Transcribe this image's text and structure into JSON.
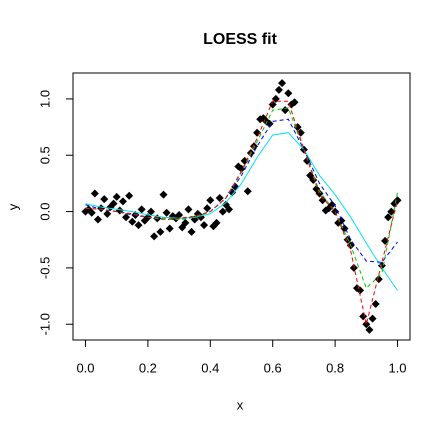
{
  "chart_data": {
    "type": "scatter",
    "title": "LOESS fit",
    "x_label": "x",
    "y_label": "y",
    "point_color": "#000000",
    "x": [
      0.0,
      0.01,
      0.02,
      0.03,
      0.04,
      0.05,
      0.06,
      0.07,
      0.08,
      0.09,
      0.1,
      0.11,
      0.12,
      0.13,
      0.14,
      0.15,
      0.16,
      0.17,
      0.18,
      0.19,
      0.2,
      0.21,
      0.22,
      0.23,
      0.24,
      0.25,
      0.26,
      0.27,
      0.28,
      0.29,
      0.3,
      0.31,
      0.32,
      0.33,
      0.34,
      0.35,
      0.36,
      0.37,
      0.38,
      0.39,
      0.4,
      0.41,
      0.42,
      0.43,
      0.44,
      0.45,
      0.46,
      0.47,
      0.48,
      0.49,
      0.5,
      0.51,
      0.52,
      0.53,
      0.54,
      0.55,
      0.56,
      0.57,
      0.58,
      0.59,
      0.6,
      0.61,
      0.62,
      0.63,
      0.64,
      0.65,
      0.66,
      0.67,
      0.68,
      0.69,
      0.7,
      0.71,
      0.72,
      0.73,
      0.74,
      0.75,
      0.76,
      0.77,
      0.78,
      0.79,
      0.8,
      0.81,
      0.82,
      0.83,
      0.84,
      0.85,
      0.86,
      0.87,
      0.88,
      0.89,
      0.9,
      0.91,
      0.92,
      0.93,
      0.94,
      0.95,
      0.96,
      0.97,
      0.98,
      0.99,
      1.0
    ],
    "y": [
      0.0,
      0.02,
      -0.01,
      0.16,
      -0.07,
      0.03,
      0.11,
      -0.02,
      0.04,
      0.07,
      0.13,
      0.01,
      0.09,
      -0.05,
      0.14,
      -0.09,
      -0.03,
      -0.12,
      0.02,
      -0.08,
      -0.05,
      0.0,
      -0.22,
      -0.06,
      -0.18,
      0.15,
      -0.01,
      -0.15,
      -0.04,
      -0.06,
      -0.03,
      -0.14,
      -0.1,
      0.02,
      -0.18,
      -0.07,
      -0.02,
      -0.05,
      -0.12,
      0.03,
      0.1,
      -0.13,
      -0.1,
      0.12,
      0.0,
      0.06,
      0.02,
      0.17,
      0.22,
      0.4,
      0.38,
      0.45,
      0.18,
      0.52,
      0.58,
      0.7,
      0.82,
      0.83,
      0.8,
      0.78,
      0.95,
      1.0,
      1.08,
      1.14,
      0.9,
      1.05,
      0.95,
      0.97,
      0.75,
      0.7,
      0.55,
      0.45,
      0.32,
      0.28,
      0.2,
      0.16,
      0.1,
      0.01,
      0.03,
      0.06,
      0.0,
      -0.1,
      -0.08,
      -0.15,
      -0.25,
      -0.3,
      -0.5,
      -0.68,
      -0.7,
      -0.93,
      -1.0,
      -1.05,
      -0.95,
      -0.82,
      -0.6,
      -0.48,
      -0.26,
      -0.05,
      0.0,
      0.07,
      0.1
    ],
    "line_x": [
      0,
      0.05,
      0.1,
      0.15,
      0.2,
      0.25,
      0.3,
      0.35,
      0.4,
      0.45,
      0.5,
      0.55,
      0.6,
      0.65,
      0.7,
      0.75,
      0.8,
      0.85,
      0.9,
      0.95,
      1
    ],
    "lines": [
      {
        "color": "#00e5ee",
        "dashed": false,
        "values": [
          0.07,
          0.04,
          0.02,
          0.0,
          -0.03,
          -0.05,
          -0.06,
          -0.05,
          -0.02,
          0.08,
          0.25,
          0.48,
          0.68,
          0.7,
          0.55,
          0.32,
          0.15,
          -0.05,
          -0.28,
          -0.5,
          -0.7
        ]
      },
      {
        "color": "#0000ff",
        "dashed": true,
        "values": [
          0.06,
          0.02,
          0.0,
          -0.03,
          -0.05,
          -0.07,
          -0.07,
          -0.05,
          0.0,
          0.12,
          0.32,
          0.58,
          0.8,
          0.82,
          0.55,
          0.25,
          0.05,
          -0.25,
          -0.44,
          -0.45,
          -0.27
        ]
      },
      {
        "color": "#00cd00",
        "dashed": true,
        "values": [
          0.03,
          0.02,
          0.0,
          -0.02,
          -0.05,
          -0.07,
          -0.07,
          -0.05,
          0.0,
          0.12,
          0.35,
          0.62,
          0.9,
          0.92,
          0.55,
          0.18,
          0.0,
          -0.3,
          -0.68,
          -0.55,
          0.17
        ]
      },
      {
        "color": "#ff0000",
        "dashed": true,
        "values": [
          0.03,
          0.02,
          0.0,
          -0.02,
          -0.05,
          -0.06,
          -0.06,
          -0.04,
          0.0,
          0.12,
          0.36,
          0.65,
          0.98,
          0.98,
          0.55,
          0.15,
          0.0,
          -0.35,
          -1.0,
          -0.45,
          0.1
        ]
      }
    ],
    "xlim": [
      -0.04,
      1.04
    ],
    "ylim": [
      -1.14,
      1.23
    ],
    "xticks": [
      {
        "value": 0,
        "label": "0.0"
      },
      0.2,
      0.4,
      0.6,
      0.8,
      {
        "value": 1,
        "label": "1.0"
      }
    ],
    "yticks": [
      {
        "value": -1,
        "label": "-1.0"
      },
      -0.5,
      {
        "value": 0,
        "label": "0.0"
      },
      0.5,
      {
        "value": 1,
        "label": "1.0"
      }
    ]
  }
}
